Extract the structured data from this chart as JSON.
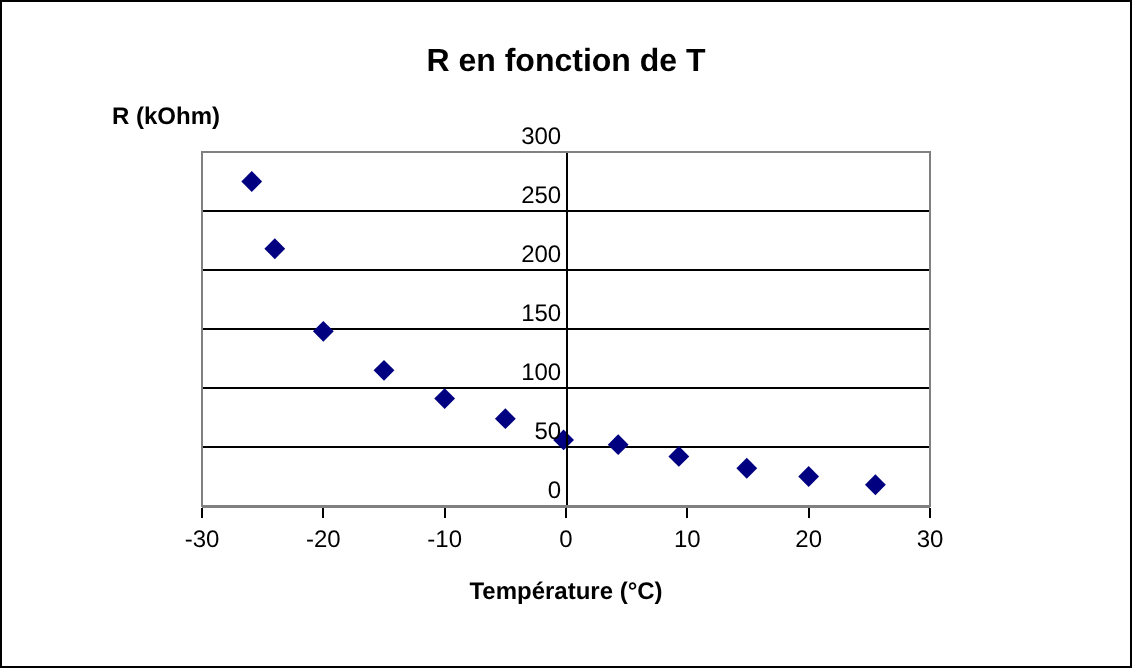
{
  "chart_data": {
    "type": "scatter",
    "title": "R en fonction de T",
    "xlabel": "Température (°C)",
    "ylabel": "R (kOhm)",
    "x": [
      -25.9,
      -24,
      -20,
      -15,
      -10,
      -5,
      -0.2,
      4.3,
      9.3,
      14.9,
      20,
      25.5
    ],
    "values": [
      275,
      218,
      148,
      115,
      91,
      74,
      56,
      52,
      42,
      32,
      25,
      18
    ],
    "color": "#000080",
    "marker": "diamond",
    "xlim": [
      -30,
      30
    ],
    "xticks": [
      -30,
      -20,
      -10,
      0,
      10,
      20,
      30
    ],
    "ylim": [
      0,
      300
    ],
    "yticks": [
      0,
      50,
      100,
      150,
      200,
      250,
      300
    ],
    "grid": "y"
  }
}
